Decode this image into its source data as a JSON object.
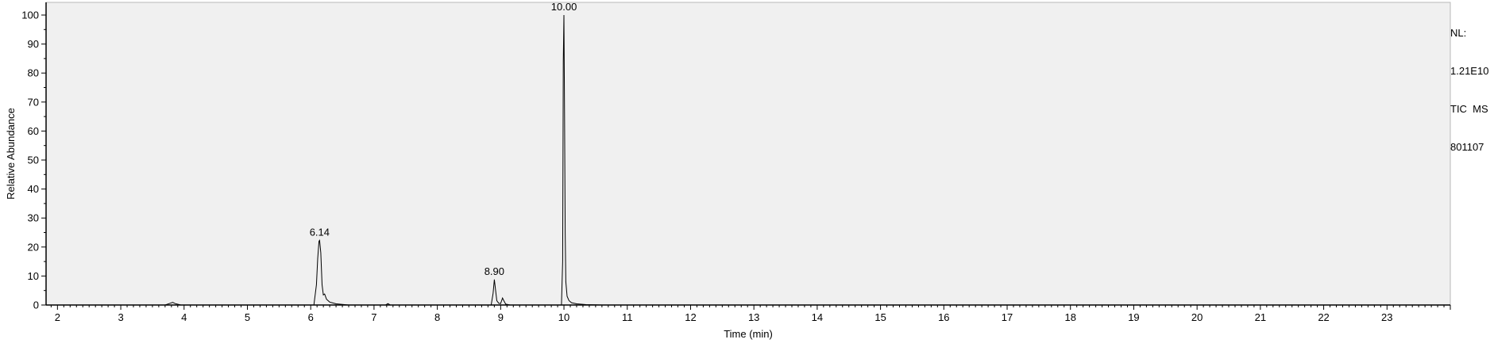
{
  "chart_data": {
    "type": "line",
    "title": "",
    "xlabel": "Time (min)",
    "ylabel": "Relative Abundance",
    "xlim": [
      1.82,
      24.0
    ],
    "ylim": [
      0,
      100
    ],
    "x_ticks": [
      2,
      3,
      4,
      5,
      6,
      7,
      8,
      9,
      10,
      11,
      12,
      13,
      14,
      15,
      16,
      17,
      18,
      19,
      20,
      21,
      22,
      23
    ],
    "y_ticks": [
      0,
      10,
      20,
      30,
      40,
      50,
      60,
      70,
      80,
      90,
      100
    ],
    "grid": false,
    "legend": "none",
    "series": [
      {
        "values_x": [
          1.82,
          3.7,
          3.78,
          3.82,
          3.86,
          3.95,
          6.05,
          6.09,
          6.11,
          6.13,
          6.14,
          6.16,
          6.18,
          6.2,
          6.22,
          6.25,
          6.3,
          6.4,
          6.6,
          7.18,
          7.22,
          7.26,
          8.85,
          8.88,
          8.9,
          8.92,
          8.94,
          8.97,
          9.0,
          9.03,
          9.05,
          9.08,
          9.15,
          9.96,
          9.98,
          9.99,
          10.0,
          10.01,
          10.02,
          10.03,
          10.05,
          10.08,
          10.12,
          10.2,
          10.35,
          10.6,
          24.0
        ],
        "values_y": [
          0,
          0,
          0.6,
          0.9,
          0.5,
          0,
          0,
          7,
          16,
          22,
          22.3,
          18,
          7,
          3.5,
          3.8,
          2,
          1,
          0.4,
          0,
          0,
          0.5,
          0,
          0,
          4,
          8.8,
          5,
          1.5,
          0.6,
          0.5,
          2.4,
          1.5,
          0.3,
          0,
          0,
          15,
          84,
          100,
          65,
          25,
          8,
          3,
          1.5,
          0.8,
          0.4,
          0.15,
          0,
          0
        ]
      }
    ],
    "annotations": [
      {
        "x": 6.14,
        "y": 22.3,
        "text": "6.14"
      },
      {
        "x": 8.9,
        "y": 8.8,
        "text": "8.90"
      },
      {
        "x": 10.0,
        "y": 100,
        "text": "10.00"
      }
    ],
    "info_lines": [
      "NL:",
      "1.21E10",
      "TIC  MS",
      "801107"
    ],
    "colors": {
      "plot_bg": "#f0f0f0",
      "line": "#000000"
    }
  }
}
